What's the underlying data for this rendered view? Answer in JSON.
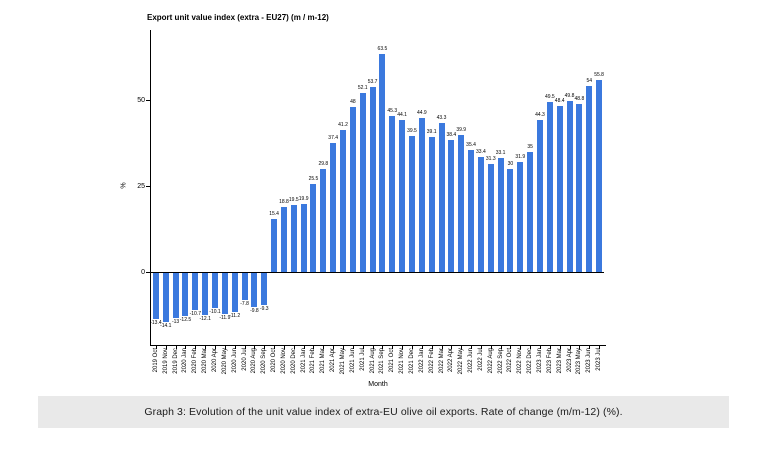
{
  "chart": {
    "title": "Export unit value index (extra - EU27) (m / m-12)",
    "caption": "Graph 3: Evolution of the unit value index of extra-EU olive oil exports. Rate of change (m/m-12) (%)."
  },
  "chart_data": {
    "type": "bar",
    "title": "Export unit value index (extra - EU27) (m / m-12)",
    "xlabel": "Month",
    "ylabel": "%",
    "categories": [
      "2019 Oct",
      "2019 Nov",
      "2019 Dec",
      "2020 Jan",
      "2020 Feb",
      "2020 Mar",
      "2020 Apr",
      "2020 May",
      "2020 Jun",
      "2020 Jul",
      "2020 Aug",
      "2020 Sep",
      "2020 Oct",
      "2020 Nov",
      "2020 Dec",
      "2021 Jan",
      "2021 Feb",
      "2021 Mar",
      "2021 Apr",
      "2021 May",
      "2021 Jun",
      "2021 Jul",
      "2021 Aug",
      "2021 Sep",
      "2021 Oct",
      "2021 Nov",
      "2021 Dec",
      "2022 Jan",
      "2022 Feb",
      "2022 Mar",
      "2022 Apr",
      "2022 May",
      "2022 Jun",
      "2022 Jul",
      "2022 Aug",
      "2022 Sep",
      "2022 Oct",
      "2022 Nov",
      "2022 Dec",
      "2023 Jan",
      "2023 Feb",
      "2023 Mar",
      "2023 Apr",
      "2023 May",
      "2023 Jun",
      "2023 Jul"
    ],
    "values": [
      -13.4,
      -14.1,
      -13,
      -12.5,
      -10.7,
      -12.1,
      -10.1,
      -11.9,
      -11.2,
      -7.8,
      -9.8,
      -9.3,
      15.4,
      18.8,
      19.5,
      19.9,
      25.5,
      29.8,
      37.4,
      41.2,
      48,
      52.1,
      53.7,
      63.5,
      45.3,
      44.1,
      39.5,
      44.9,
      39.1,
      43.3,
      38.4,
      39.9,
      35.4,
      33.4,
      31.3,
      33.1,
      30,
      31.9,
      35,
      44.3,
      49.5,
      48.4,
      49.8,
      48.8,
      54,
      55.8
    ],
    "yticks": [
      0,
      25,
      50
    ],
    "ylim": [
      -20,
      70
    ],
    "grid": false,
    "legend": "none",
    "value_labels_shown": true
  },
  "colors": {
    "bar": "#3b79de",
    "axis": "#000000",
    "text": "#000000",
    "caption_background": "#e9e9e9",
    "background": "#ffffff"
  }
}
